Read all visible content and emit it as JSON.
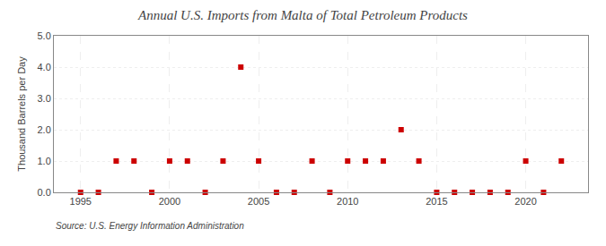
{
  "chart_data": {
    "type": "scatter",
    "title": "Annual U.S. Imports from Malta of Total Petroleum Products",
    "ylabel": "Thousand Barrels per Day",
    "source": "Source: U.S. Energy Information Administration",
    "x": [
      1995,
      1996,
      1997,
      1998,
      1999,
      2000,
      2001,
      2002,
      2003,
      2004,
      2005,
      2006,
      2007,
      2008,
      2009,
      2010,
      2011,
      2012,
      2013,
      2014,
      2015,
      2016,
      2017,
      2018,
      2019,
      2020,
      2021,
      2022
    ],
    "values": [
      0,
      0,
      1,
      1,
      0,
      1,
      1,
      0,
      1,
      4,
      1,
      0,
      0,
      1,
      0,
      1,
      1,
      1,
      2,
      1,
      0,
      0,
      0,
      0,
      0,
      1,
      0,
      1
    ],
    "color": "#cc0000",
    "marker": "square",
    "xlim": [
      1993.5,
      2023.5
    ],
    "xticks": [
      1995,
      2000,
      2005,
      2010,
      2015,
      2020
    ],
    "ylim": [
      0.0,
      5.0
    ],
    "yticks": [
      {
        "value": 0.0,
        "label": "0.0"
      },
      {
        "value": 1.0,
        "label": "1.0"
      },
      {
        "value": 2.0,
        "label": "2.0"
      },
      {
        "value": 3.0,
        "label": "3.0"
      },
      {
        "value": 4.0,
        "label": "4.0"
      },
      {
        "value": 5.0,
        "label": "5.0"
      }
    ],
    "grid": true
  }
}
